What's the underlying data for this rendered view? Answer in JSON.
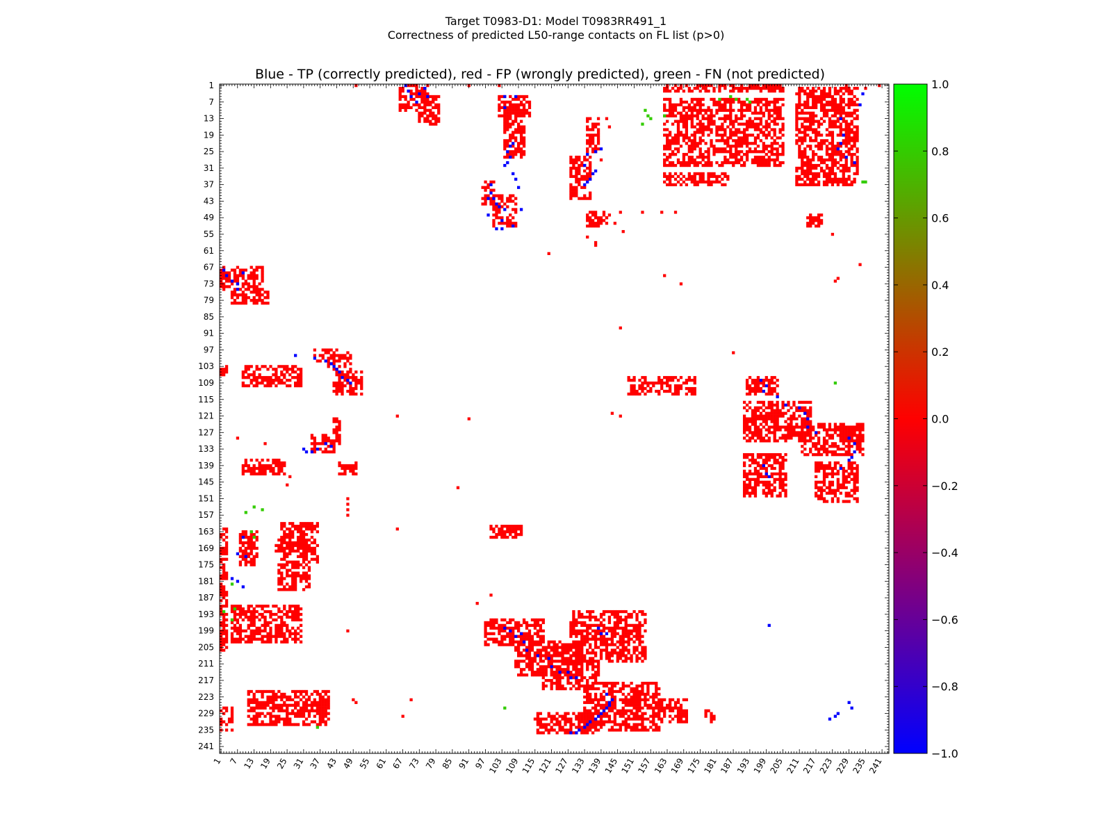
{
  "figure": {
    "title_line1": "Target T0983-D1: Model T0983RR491_1",
    "title_line2": "Correctness of predicted L50-range contacts on FL list (p>0)"
  },
  "chart_data": {
    "type": "heatmap",
    "title": "Blue - TP (correctly predicted), red - FP (wrongly predicted), green - FN (not predicted)",
    "xlabel": "",
    "ylabel": "",
    "xlim": [
      1,
      243
    ],
    "ylim": [
      1,
      243
    ],
    "y_inverted": true,
    "tick_labels": [
      1,
      7,
      13,
      19,
      25,
      31,
      37,
      43,
      49,
      55,
      61,
      67,
      73,
      79,
      85,
      91,
      97,
      103,
      109,
      115,
      121,
      127,
      133,
      139,
      145,
      151,
      157,
      163,
      169,
      175,
      181,
      187,
      193,
      199,
      205,
      211,
      217,
      223,
      229,
      235,
      241
    ],
    "colorbar": {
      "min": -1.0,
      "max": 1.0,
      "ticks": [
        "1.0",
        "0.8",
        "0.6",
        "0.4",
        "0.2",
        "0.0",
        "−0.2",
        "−0.4",
        "−0.6",
        "−0.8",
        "−1.0"
      ],
      "colors": [
        "#0000ff",
        "#ff0000",
        "#00ff00"
      ]
    },
    "categories": {
      "TP": -1,
      "FP": 0,
      "FN": 1
    },
    "colors": {
      "TP": "#0000ff",
      "FP": "#ff0000",
      "FN": "#33cc00"
    },
    "fp_regions": [
      [
        67,
        75,
        1,
        16
      ],
      [
        76,
        80,
        5,
        18
      ],
      [
        97,
        101,
        35,
        43
      ],
      [
        103,
        106,
        1,
        3
      ],
      [
        103,
        110,
        9,
        30
      ],
      [
        105,
        113,
        42,
        52
      ],
      [
        98,
        104,
        40,
        48
      ],
      [
        128,
        134,
        34,
        42
      ],
      [
        137,
        142,
        9,
        24
      ],
      [
        138,
        142,
        44,
        50
      ],
      [
        122,
        131,
        42,
        44
      ],
      [
        1,
        10,
        66,
        76
      ],
      [
        5,
        15,
        73,
        80
      ],
      [
        8,
        27,
        104,
        111
      ],
      [
        5,
        12,
        102,
        113
      ],
      [
        36,
        44,
        96,
        100
      ],
      [
        41,
        52,
        100,
        108
      ],
      [
        13,
        25,
        134,
        138
      ],
      [
        27,
        42,
        128,
        135
      ],
      [
        47,
        52,
        134,
        141
      ],
      [
        1,
        3,
        162,
        180
      ],
      [
        1,
        3,
        182,
        205
      ],
      [
        6,
        30,
        162,
        205
      ],
      [
        33,
        37,
        162,
        185
      ],
      [
        2,
        37,
        210,
        232
      ],
      [
        48,
        52,
        214,
        219
      ],
      [
        107,
        113,
        149,
        173
      ],
      [
        107,
        113,
        192,
        203
      ],
      [
        116,
        130,
        191,
        215
      ],
      [
        124,
        135,
        212,
        234
      ],
      [
        135,
        150,
        191,
        206
      ],
      [
        138,
        152,
        217,
        232
      ],
      [
        125,
        132,
        226,
        233
      ],
      [
        162,
        170,
        1,
        3
      ],
      [
        170,
        206,
        1,
        3
      ],
      [
        163,
        175,
        8,
        14
      ],
      [
        166,
        170,
        21,
        33
      ],
      [
        160,
        174,
        23,
        36
      ],
      [
        175,
        184,
        22,
        33
      ],
      [
        190,
        203,
        5,
        30
      ],
      [
        227,
        235,
        1,
        5
      ],
      [
        221,
        233,
        11,
        40
      ],
      [
        161,
        165,
        99,
        110
      ],
      [
        195,
        204,
        97,
        118
      ],
      [
        203,
        215,
        108,
        132
      ],
      [
        210,
        220,
        118,
        138
      ],
      [
        192,
        210,
        128,
        155
      ],
      [
        218,
        235,
        133,
        160
      ],
      [
        229,
        236,
        115,
        136
      ],
      [
        224,
        232,
        160,
        170
      ],
      [
        228,
        232,
        177,
        180
      ]
    ],
    "tp_points": [
      [
        1,
        68
      ],
      [
        3,
        69
      ],
      [
        5,
        70
      ],
      [
        7,
        72
      ],
      [
        4,
        73
      ],
      [
        2,
        75
      ],
      [
        5,
        76
      ],
      [
        42,
        98
      ],
      [
        40,
        99
      ],
      [
        42,
        100
      ],
      [
        44,
        101
      ],
      [
        45,
        102
      ],
      [
        46,
        104
      ],
      [
        50,
        103
      ],
      [
        37,
        99
      ],
      [
        53,
        101
      ],
      [
        5,
        104
      ],
      [
        30,
        104
      ],
      [
        29,
        105
      ],
      [
        27,
        106
      ],
      [
        33,
        107
      ],
      [
        35,
        108
      ],
      [
        38,
        109
      ],
      [
        68,
        2
      ],
      [
        70,
        3
      ],
      [
        72,
        5
      ],
      [
        73,
        7
      ],
      [
        75,
        7
      ],
      [
        69,
        9
      ],
      [
        99,
        28
      ],
      [
        100,
        35
      ],
      [
        101,
        39
      ],
      [
        102,
        41
      ],
      [
        103,
        42
      ],
      [
        104,
        43
      ],
      [
        105,
        44
      ],
      [
        107,
        45
      ],
      [
        109,
        48
      ],
      [
        108,
        47
      ],
      [
        133,
        31
      ],
      [
        134,
        34
      ],
      [
        133,
        36
      ],
      [
        131,
        39
      ],
      [
        132,
        41
      ],
      [
        134,
        32
      ],
      [
        25,
        105
      ],
      [
        23,
        106
      ],
      [
        22,
        107
      ],
      [
        9,
        104
      ],
      [
        52,
        107
      ],
      [
        53,
        103
      ],
      [
        5,
        108
      ],
      [
        48,
        98
      ],
      [
        46,
        110
      ],
      [
        37,
        133
      ],
      [
        36,
        134
      ],
      [
        35,
        135
      ],
      [
        33,
        136
      ],
      [
        32,
        137
      ],
      [
        30,
        133
      ],
      [
        26,
        134
      ],
      [
        25,
        137
      ],
      [
        24,
        139
      ],
      [
        108,
        197
      ],
      [
        110,
        199
      ],
      [
        112,
        198
      ],
      [
        114,
        203
      ],
      [
        117,
        206
      ],
      [
        118,
        211
      ],
      [
        120,
        213
      ],
      [
        122,
        214
      ],
      [
        125,
        214
      ],
      [
        127,
        217
      ],
      [
        129,
        229
      ],
      [
        131,
        231
      ],
      [
        134,
        231
      ],
      [
        136,
        230
      ],
      [
        137,
        229
      ],
      [
        140,
        226
      ],
      [
        139,
        198
      ],
      [
        142,
        199
      ],
      [
        143,
        200
      ],
      [
        27,
        228
      ],
      [
        29,
        231
      ],
      [
        24,
        225
      ],
      [
        22,
        226
      ],
      [
        19,
        227
      ],
      [
        13,
        226
      ],
      [
        8,
        233
      ],
      [
        4,
        234
      ],
      [
        198,
        104
      ],
      [
        199,
        106
      ],
      [
        201,
        108
      ],
      [
        200,
        110
      ],
      [
        203,
        111
      ],
      [
        206,
        112
      ],
      [
        208,
        116
      ],
      [
        209,
        120
      ],
      [
        212,
        121
      ],
      [
        214,
        124
      ],
      [
        214,
        127
      ],
      [
        216,
        128
      ],
      [
        216,
        130
      ],
      [
        236,
        128
      ],
      [
        236,
        130
      ],
      [
        235,
        131
      ],
      [
        234,
        133
      ],
      [
        233,
        134
      ],
      [
        232,
        135
      ],
      [
        231,
        137
      ],
      [
        230,
        138
      ],
      [
        229,
        139
      ],
      [
        228,
        140
      ],
      [
        227,
        141
      ],
      [
        226,
        142
      ],
      [
        225,
        142
      ],
      [
        224,
        143
      ],
      [
        222,
        141
      ],
      [
        200,
        139
      ],
      [
        198,
        138
      ],
      [
        172,
        10
      ],
      [
        171,
        7
      ],
      [
        165,
        9
      ],
      [
        183,
        9
      ],
      [
        181,
        7
      ],
      [
        180,
        5
      ],
      [
        198,
        138
      ],
      [
        200,
        141
      ],
      [
        197,
        200
      ],
      [
        229,
        225
      ],
      [
        230,
        224
      ],
      [
        231,
        222
      ],
      [
        227,
        230
      ],
      [
        225,
        229
      ]
    ],
    "fn_points": [
      [
        156,
        10
      ],
      [
        154,
        13
      ],
      [
        155,
        16
      ],
      [
        165,
        13
      ],
      [
        163,
        12
      ],
      [
        182,
        5
      ],
      [
        191,
        6
      ],
      [
        195,
        5
      ],
      [
        192,
        2
      ],
      [
        10,
        155
      ],
      [
        13,
        157
      ],
      [
        12,
        156
      ],
      [
        15,
        154
      ],
      [
        12,
        162
      ],
      [
        6,
        182
      ],
      [
        5,
        186
      ],
      [
        6,
        188
      ],
      [
        6,
        192
      ],
      [
        7,
        193
      ],
      [
        36,
        235
      ],
      [
        109,
        224
      ],
      [
        227,
        104
      ],
      [
        234,
        36
      ],
      [
        36,
        234
      ]
    ],
    "fp_points": [
      [
        1,
        50
      ],
      [
        1,
        91
      ],
      [
        1,
        102
      ],
      [
        1,
        163
      ],
      [
        1,
        170
      ],
      [
        1,
        240
      ],
      [
        2,
        235
      ],
      [
        1,
        228
      ],
      [
        56,
        134
      ],
      [
        62,
        120
      ],
      [
        89,
        146
      ],
      [
        98,
        187
      ],
      [
        121,
        65
      ],
      [
        147,
        87
      ],
      [
        162,
        65
      ],
      [
        186,
        99
      ],
      [
        129,
        7
      ],
      [
        131,
        17
      ],
      [
        140,
        18
      ],
      [
        143,
        26
      ],
      [
        146,
        25
      ],
      [
        151,
        47
      ],
      [
        153,
        47
      ],
      [
        155,
        47
      ],
      [
        157,
        47
      ],
      [
        122,
        91
      ],
      [
        199,
        47
      ],
      [
        224,
        49
      ],
      [
        225,
        50
      ],
      [
        230,
        67
      ],
      [
        224,
        70
      ],
      [
        189,
        94
      ],
      [
        120,
        143
      ],
      [
        121,
        146
      ],
      [
        70,
        162
      ],
      [
        73,
        168
      ],
      [
        48,
        142
      ],
      [
        47,
        146
      ],
      [
        47,
        154
      ],
      [
        47,
        161
      ],
      [
        47,
        166
      ],
      [
        59,
        137
      ],
      [
        58,
        137
      ],
      [
        13,
        141
      ],
      [
        16,
        142
      ],
      [
        55,
        223
      ],
      [
        66,
        233
      ],
      [
        71,
        225
      ],
      [
        72,
        224
      ],
      [
        25,
        136
      ],
      [
        28,
        139
      ],
      [
        49,
        141
      ],
      [
        51,
        144
      ],
      [
        54,
        147
      ]
    ]
  }
}
